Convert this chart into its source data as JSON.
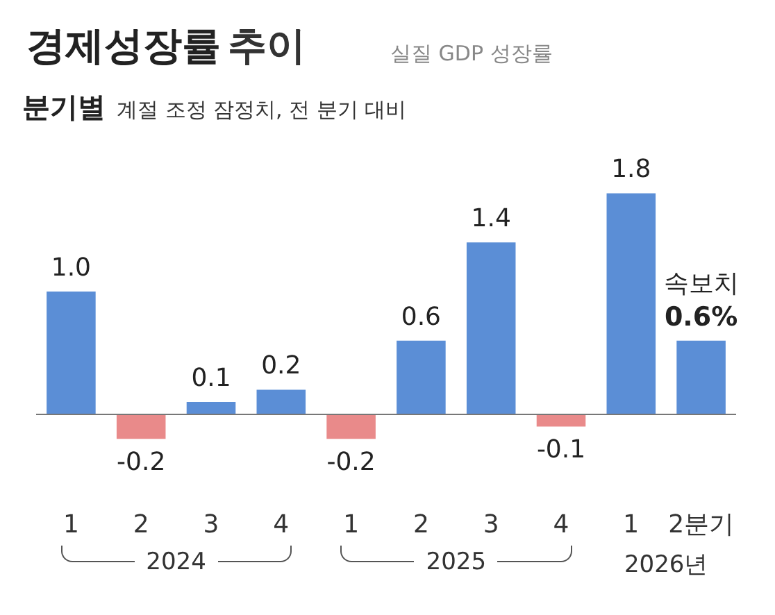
{
  "chart_data": {
    "type": "bar",
    "title": "경제성장률 추이",
    "subtitle": "실질 GDP 성장률",
    "categories": [
      "1",
      "2",
      "3",
      "4",
      "1",
      "2",
      "3",
      "4",
      "1",
      "2분기"
    ],
    "values": [
      1.0,
      -0.2,
      0.1,
      0.2,
      -0.2,
      0.6,
      1.4,
      -0.1,
      1.8,
      0.6
    ],
    "colors": [
      "#5b8ed6",
      "#e98a8a",
      "#5b8ed6",
      "#5b8ed6",
      "#e98a8a",
      "#5b8ed6",
      "#5b8ed6",
      "#e98a8a",
      "#5b8ed6",
      "#5b8ed6"
    ],
    "value_labels": [
      "1.0",
      "-0.2",
      "0.1",
      "0.2",
      "-0.2",
      "0.6",
      "1.4",
      "-0.1",
      "1.8",
      "0.6%"
    ],
    "annotations": [
      {
        "text": "속보치",
        "x": "2분기",
        "y": 0.6
      },
      "분기별",
      "계절 조정 잠정치, 전 분기 대비",
      "2024",
      "2025",
      "2026년"
    ],
    "tick_labels": "x"
  }
}
